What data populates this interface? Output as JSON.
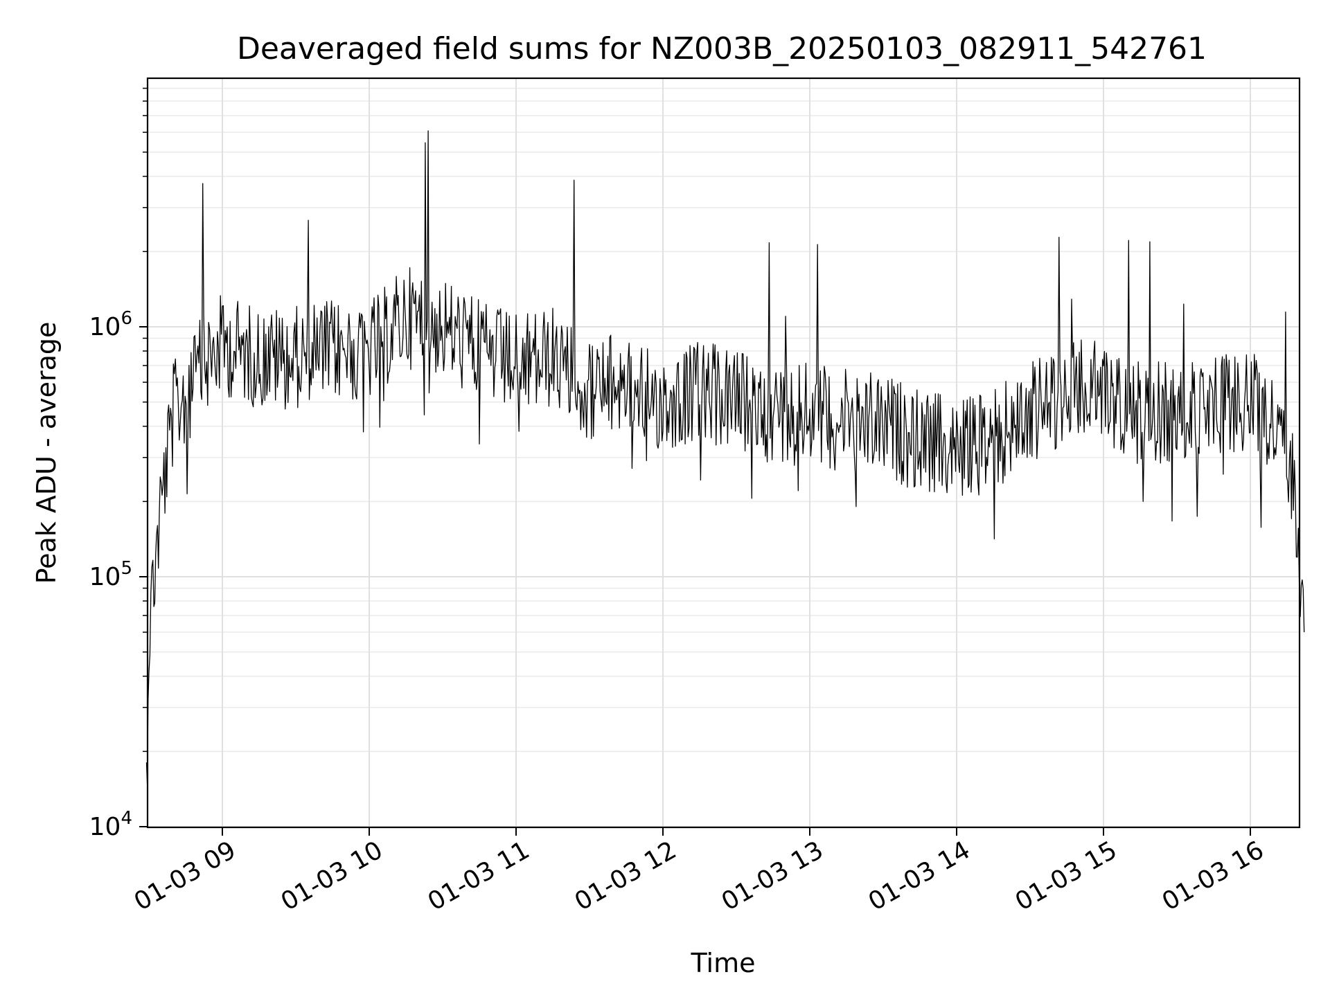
{
  "chart_data": {
    "type": "line",
    "title": "Deaveraged field sums for NZ003B_20250103_082911_542761",
    "xlabel": "Time",
    "ylabel": "Peak ADU - average",
    "yscale": "log",
    "ylim": [
      10000,
      9000000
    ],
    "xlim": [
      "2025-01-03 08:29",
      "2025-01-03 16:22"
    ],
    "grid": true,
    "x_tick_labels": [
      "01-03 09",
      "01-03 10",
      "01-03 11",
      "01-03 12",
      "01-03 13",
      "01-03 14",
      "01-03 15",
      "01-03 16"
    ],
    "y_tick_labels": [
      {
        "base": "10",
        "exp": "4"
      },
      {
        "base": "10",
        "exp": "5"
      },
      {
        "base": "10",
        "exp": "6"
      }
    ],
    "series": [
      {
        "color": "#000000",
        "x": [
          "2025-01-03 08:29",
          "2025-01-03 08:30",
          "2025-01-03 08:32",
          "2025-01-03 08:35",
          "2025-01-03 08:40",
          "2025-01-03 08:50",
          "2025-01-03 09:00",
          "2025-01-03 09:15",
          "2025-01-03 09:30",
          "2025-01-03 09:45",
          "2025-01-03 10:00",
          "2025-01-03 10:15",
          "2025-01-03 10:30",
          "2025-01-03 10:45",
          "2025-01-03 11:00",
          "2025-01-03 11:15",
          "2025-01-03 11:30",
          "2025-01-03 11:45",
          "2025-01-03 12:00",
          "2025-01-03 12:15",
          "2025-01-03 12:30",
          "2025-01-03 12:45",
          "2025-01-03 13:00",
          "2025-01-03 13:15",
          "2025-01-03 13:30",
          "2025-01-03 13:45",
          "2025-01-03 14:00",
          "2025-01-03 14:15",
          "2025-01-03 14:30",
          "2025-01-03 14:45",
          "2025-01-03 15:00",
          "2025-01-03 15:15",
          "2025-01-03 15:30",
          "2025-01-03 15:45",
          "2025-01-03 16:00",
          "2025-01-03 16:10",
          "2025-01-03 16:18",
          "2025-01-03 16:22"
        ],
        "values": [
          15000,
          60000,
          100000,
          200000,
          450000,
          650000,
          850000,
          750000,
          750000,
          800000,
          800000,
          1100000,
          1000000,
          800000,
          700000,
          750000,
          550000,
          600000,
          500000,
          550000,
          500000,
          450000,
          450000,
          420000,
          400000,
          350000,
          320000,
          350000,
          450000,
          550000,
          550000,
          450000,
          450000,
          500000,
          500000,
          400000,
          250000,
          60000
        ]
      }
    ]
  }
}
